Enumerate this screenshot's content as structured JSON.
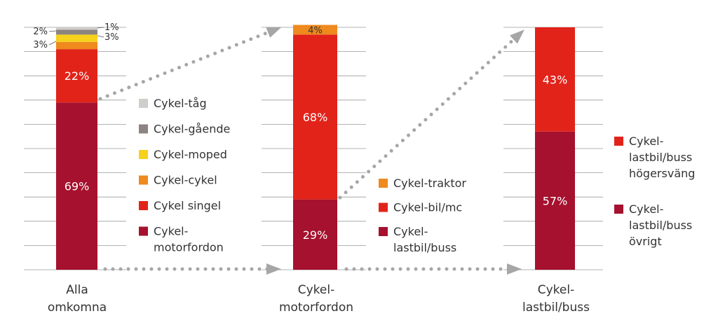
{
  "chart_data": {
    "type": "bar",
    "stacked": true,
    "ylim": [
      0,
      100
    ],
    "grid": true,
    "colors": {
      "Cykel-tåg": "#d0cdcb",
      "Cykel-gående": "#8c8480",
      "Cykel-moped": "#f7d21c",
      "Cykel-cykel": "#ee8a1e",
      "Cykel singel": "#e2231a",
      "Cykel-motorfordon": "#a5112e",
      "Cykel-traktor": "#ee8a1e",
      "Cykel-bil/mc": "#e2231a",
      "Cykel-lastbil/buss": "#a5112e",
      "Cykel-lastbil/buss högersväng": "#e2231a",
      "Cykel-lastbil/buss övrigt": "#a5112e"
    },
    "bars": [
      {
        "category": [
          "Alla",
          "omkomna"
        ],
        "segments": [
          {
            "name": "Cykel-motorfordon",
            "value": 69,
            "label": "69%"
          },
          {
            "name": "Cykel singel",
            "value": 22,
            "label": "22%"
          },
          {
            "name": "Cykel-cykel",
            "value": 3,
            "label": "3%"
          },
          {
            "name": "Cykel-moped",
            "value": 3,
            "label": "3%"
          },
          {
            "name": "Cykel-gående",
            "value": 2,
            "label": "2%"
          },
          {
            "name": "Cykel-tåg",
            "value": 1,
            "label": "1%"
          }
        ],
        "legend": [
          {
            "name": "Cykel-tåg",
            "lines": [
              "Cykel-tåg"
            ]
          },
          {
            "name": "Cykel-gående",
            "lines": [
              "Cykel-gående"
            ]
          },
          {
            "name": "Cykel-moped",
            "lines": [
              "Cykel-moped"
            ]
          },
          {
            "name": "Cykel-cykel",
            "lines": [
              "Cykel-cykel"
            ]
          },
          {
            "name": "Cykel singel",
            "lines": [
              "Cykel singel"
            ]
          },
          {
            "name": "Cykel-motorfordon",
            "lines": [
              "Cykel-",
              "motorfordon"
            ]
          }
        ]
      },
      {
        "category": [
          "Cykel-",
          "motorfordon"
        ],
        "segments": [
          {
            "name": "Cykel-lastbil/buss",
            "value": 29,
            "label": "29%"
          },
          {
            "name": "Cykel-bil/mc",
            "value": 68,
            "label": "68%"
          },
          {
            "name": "Cykel-traktor",
            "value": 4,
            "label": "4%"
          }
        ],
        "legend": [
          {
            "name": "Cykel-traktor",
            "lines": [
              "Cykel-traktor"
            ]
          },
          {
            "name": "Cykel-bil/mc",
            "lines": [
              "Cykel-bil/mc"
            ]
          },
          {
            "name": "Cykel-lastbil/buss",
            "lines": [
              "Cykel-",
              "lastbil/buss"
            ]
          }
        ]
      },
      {
        "category": [
          "Cykel-",
          "lastbil/buss"
        ],
        "segments": [
          {
            "name": "Cykel-lastbil/buss övrigt",
            "value": 57,
            "label": "57%"
          },
          {
            "name": "Cykel-lastbil/buss högersväng",
            "value": 43,
            "label": "43%"
          }
        ],
        "legend": [
          {
            "name": "Cykel-lastbil/buss högersväng",
            "lines": [
              "Cykel-",
              "lastbil/buss",
              "högersväng"
            ]
          },
          {
            "name": "Cykel-lastbil/buss övrigt",
            "lines": [
              "Cykel-",
              "lastbil/buss",
              "övrigt"
            ]
          }
        ]
      }
    ]
  }
}
